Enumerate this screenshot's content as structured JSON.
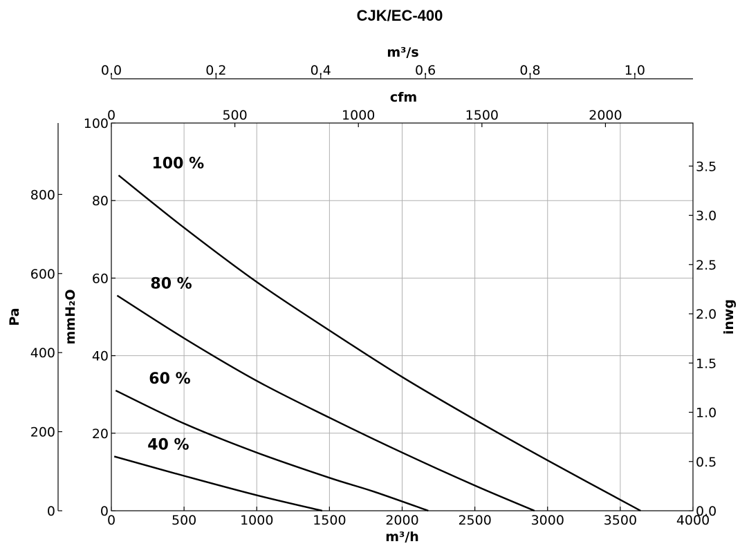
{
  "chart_data": {
    "type": "line",
    "title": "CJK/EC-400",
    "x_axis_bottom": {
      "label": "m³/h",
      "range": [
        0,
        4000
      ],
      "ticks": [
        0,
        500,
        1000,
        1500,
        2000,
        2500,
        3000,
        3500,
        4000
      ]
    },
    "x_axis_cfm": {
      "label": "cfm",
      "ticks": [
        0,
        500,
        1000,
        1500,
        2000
      ]
    },
    "x_axis_m3s": {
      "label": "m³/s",
      "ticks": [
        "0.0",
        "0.2",
        "0.4",
        "0.6",
        "0.8",
        "1.0"
      ]
    },
    "y_axis_mmh2o": {
      "label": "mmH₂O",
      "range": [
        0,
        100
      ],
      "ticks": [
        0,
        20,
        40,
        60,
        80,
        100
      ]
    },
    "y_axis_pa": {
      "label": "Pa",
      "ticks": [
        0,
        200,
        400,
        600,
        800
      ]
    },
    "y_axis_inwg": {
      "label": "inwg",
      "ticks": [
        "0.0",
        "0.5",
        "1.0",
        "1.5",
        "2.0",
        "2.5",
        "3.0",
        "3.5"
      ]
    },
    "grid": true,
    "series": [
      {
        "name": "100 %",
        "x": [
          50,
          500,
          1000,
          1500,
          2000,
          2500,
          3000,
          3640
        ],
        "y": [
          86.5,
          73,
          59,
          46.5,
          34.5,
          23.5,
          13,
          0
        ]
      },
      {
        "name": "80 %",
        "x": [
          40,
          500,
          1000,
          1500,
          2000,
          2500,
          2910
        ],
        "y": [
          55.5,
          44.5,
          33.5,
          24,
          15,
          6.5,
          0
        ]
      },
      {
        "name": "60 %",
        "x": [
          30,
          500,
          1000,
          1500,
          1800,
          2180
        ],
        "y": [
          31,
          22.5,
          15,
          8.5,
          5,
          0
        ]
      },
      {
        "name": "40 %",
        "x": [
          20,
          500,
          1000,
          1450
        ],
        "y": [
          14,
          9,
          4,
          0
        ]
      }
    ]
  }
}
